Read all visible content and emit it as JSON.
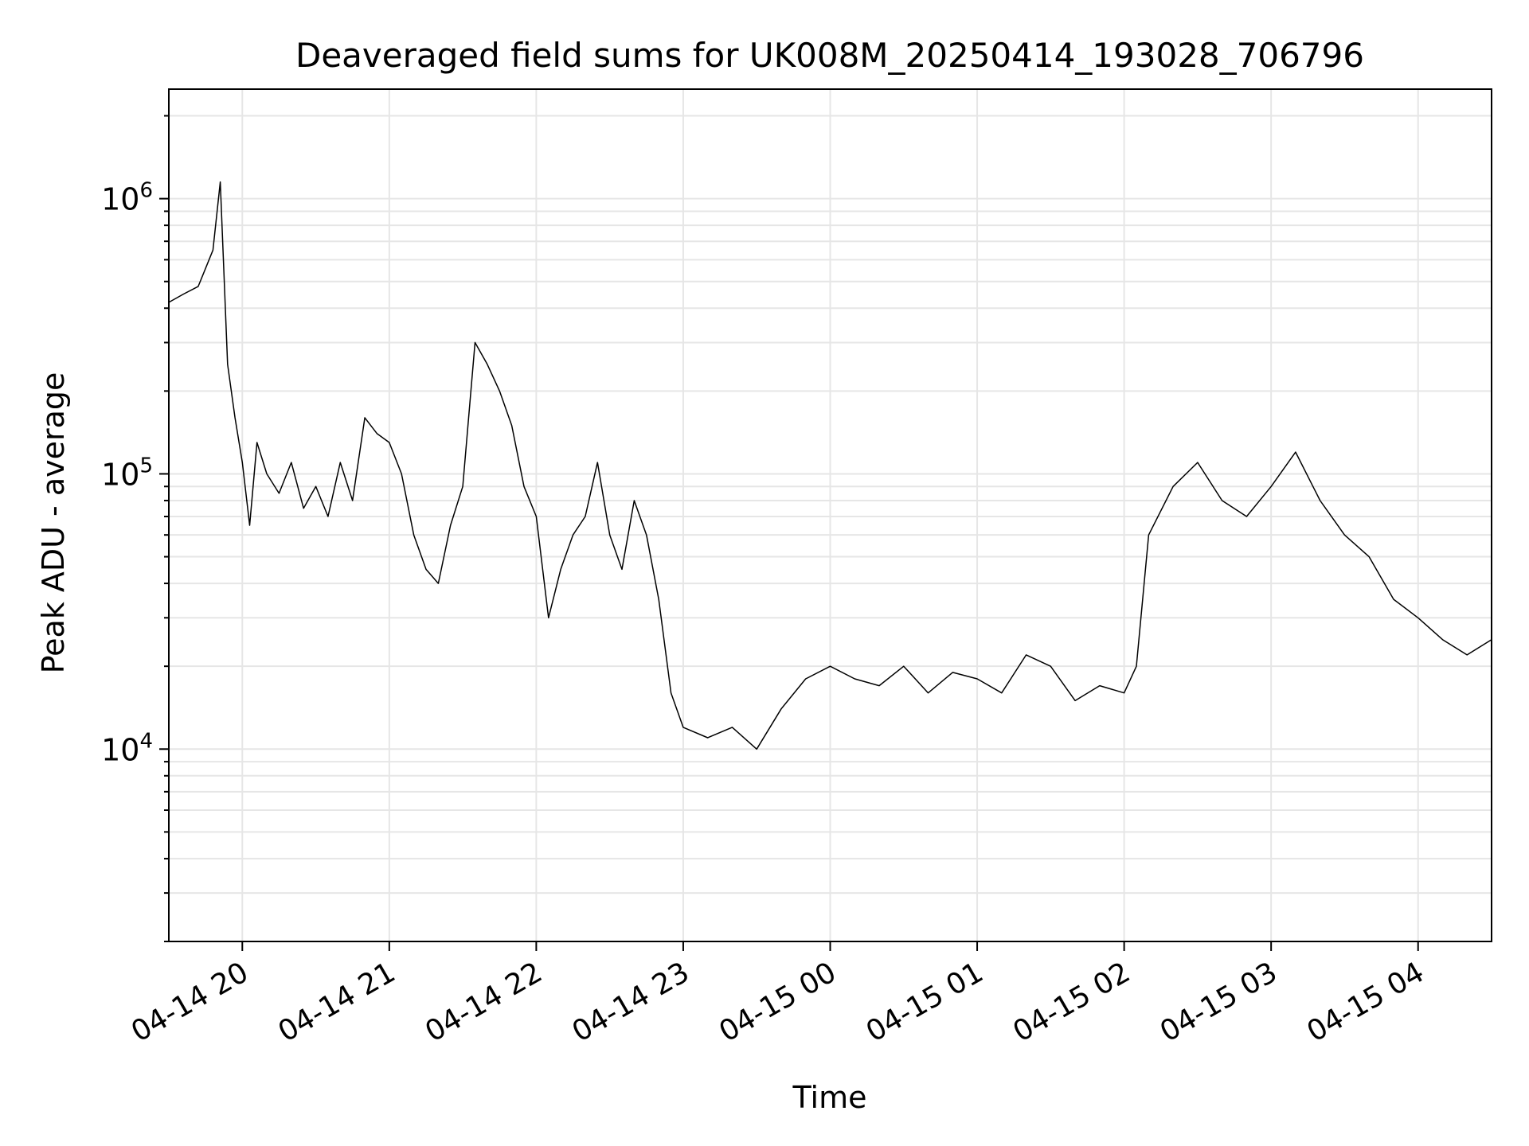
{
  "chart_data": {
    "type": "line",
    "title": "Deaveraged field sums for UK008M_20250414_193028_706796",
    "xlabel": "Time",
    "ylabel": "Peak ADU - average",
    "y_scale": "log",
    "grid": true,
    "legend": "none",
    "line_color": "#000000",
    "grid_color": "#e6e6e6",
    "xlim": [
      "2025-04-14 19:30",
      "2025-04-15 04:30"
    ],
    "ylim": [
      2000,
      2500000
    ],
    "x_ticks": [
      {
        "t": "2025-04-14 20:00",
        "label": "04-14 20"
      },
      {
        "t": "2025-04-14 21:00",
        "label": "04-14 21"
      },
      {
        "t": "2025-04-14 22:00",
        "label": "04-14 22"
      },
      {
        "t": "2025-04-14 23:00",
        "label": "04-14 23"
      },
      {
        "t": "2025-04-15 00:00",
        "label": "04-15 00"
      },
      {
        "t": "2025-04-15 01:00",
        "label": "04-15 01"
      },
      {
        "t": "2025-04-15 02:00",
        "label": "04-15 02"
      },
      {
        "t": "2025-04-15 03:00",
        "label": "04-15 03"
      },
      {
        "t": "2025-04-15 04:00",
        "label": "04-15 04"
      }
    ],
    "y_ticks": [
      {
        "value": 10000,
        "base": "10",
        "exp": "4"
      },
      {
        "value": 100000,
        "base": "10",
        "exp": "5"
      },
      {
        "value": 1000000,
        "base": "10",
        "exp": "6"
      }
    ],
    "series": [
      {
        "points": [
          [
            "2025-04-14 19:30",
            420000
          ],
          [
            "2025-04-14 19:36",
            450000
          ],
          [
            "2025-04-14 19:42",
            480000
          ],
          [
            "2025-04-14 19:48",
            650000
          ],
          [
            "2025-04-14 19:51",
            1150000
          ],
          [
            "2025-04-14 19:54",
            250000
          ],
          [
            "2025-04-14 19:57",
            160000
          ],
          [
            "2025-04-14 20:00",
            110000
          ],
          [
            "2025-04-14 20:03",
            65000
          ],
          [
            "2025-04-14 20:06",
            130000
          ],
          [
            "2025-04-14 20:10",
            100000
          ],
          [
            "2025-04-14 20:15",
            85000
          ],
          [
            "2025-04-14 20:20",
            110000
          ],
          [
            "2025-04-14 20:25",
            75000
          ],
          [
            "2025-04-14 20:30",
            90000
          ],
          [
            "2025-04-14 20:35",
            70000
          ],
          [
            "2025-04-14 20:40",
            110000
          ],
          [
            "2025-04-14 20:45",
            80000
          ],
          [
            "2025-04-14 20:50",
            160000
          ],
          [
            "2025-04-14 20:55",
            140000
          ],
          [
            "2025-04-14 21:00",
            130000
          ],
          [
            "2025-04-14 21:05",
            100000
          ],
          [
            "2025-04-14 21:10",
            60000
          ],
          [
            "2025-04-14 21:15",
            45000
          ],
          [
            "2025-04-14 21:20",
            40000
          ],
          [
            "2025-04-14 21:25",
            65000
          ],
          [
            "2025-04-14 21:30",
            90000
          ],
          [
            "2025-04-14 21:35",
            300000
          ],
          [
            "2025-04-14 21:40",
            250000
          ],
          [
            "2025-04-14 21:45",
            200000
          ],
          [
            "2025-04-14 21:50",
            150000
          ],
          [
            "2025-04-14 21:55",
            90000
          ],
          [
            "2025-04-14 22:00",
            70000
          ],
          [
            "2025-04-14 22:05",
            30000
          ],
          [
            "2025-04-14 22:10",
            45000
          ],
          [
            "2025-04-14 22:15",
            60000
          ],
          [
            "2025-04-14 22:20",
            70000
          ],
          [
            "2025-04-14 22:25",
            110000
          ],
          [
            "2025-04-14 22:30",
            60000
          ],
          [
            "2025-04-14 22:35",
            45000
          ],
          [
            "2025-04-14 22:40",
            80000
          ],
          [
            "2025-04-14 22:45",
            60000
          ],
          [
            "2025-04-14 22:50",
            35000
          ],
          [
            "2025-04-14 22:55",
            16000
          ],
          [
            "2025-04-14 23:00",
            12000
          ],
          [
            "2025-04-14 23:10",
            11000
          ],
          [
            "2025-04-14 23:20",
            12000
          ],
          [
            "2025-04-14 23:30",
            10000
          ],
          [
            "2025-04-14 23:40",
            14000
          ],
          [
            "2025-04-14 23:50",
            18000
          ],
          [
            "2025-04-15 00:00",
            20000
          ],
          [
            "2025-04-15 00:10",
            18000
          ],
          [
            "2025-04-15 00:20",
            17000
          ],
          [
            "2025-04-15 00:30",
            20000
          ],
          [
            "2025-04-15 00:40",
            16000
          ],
          [
            "2025-04-15 00:50",
            19000
          ],
          [
            "2025-04-15 01:00",
            18000
          ],
          [
            "2025-04-15 01:10",
            16000
          ],
          [
            "2025-04-15 01:20",
            22000
          ],
          [
            "2025-04-15 01:30",
            20000
          ],
          [
            "2025-04-15 01:40",
            15000
          ],
          [
            "2025-04-15 01:50",
            17000
          ],
          [
            "2025-04-15 02:00",
            16000
          ],
          [
            "2025-04-15 02:05",
            20000
          ],
          [
            "2025-04-15 02:10",
            60000
          ],
          [
            "2025-04-15 02:20",
            90000
          ],
          [
            "2025-04-15 02:30",
            110000
          ],
          [
            "2025-04-15 02:40",
            80000
          ],
          [
            "2025-04-15 02:50",
            70000
          ],
          [
            "2025-04-15 03:00",
            90000
          ],
          [
            "2025-04-15 03:10",
            120000
          ],
          [
            "2025-04-15 03:20",
            80000
          ],
          [
            "2025-04-15 03:30",
            60000
          ],
          [
            "2025-04-15 03:40",
            50000
          ],
          [
            "2025-04-15 03:50",
            35000
          ],
          [
            "2025-04-15 04:00",
            30000
          ],
          [
            "2025-04-15 04:10",
            25000
          ],
          [
            "2025-04-15 04:20",
            22000
          ],
          [
            "2025-04-15 04:30",
            25000
          ]
        ]
      }
    ]
  }
}
